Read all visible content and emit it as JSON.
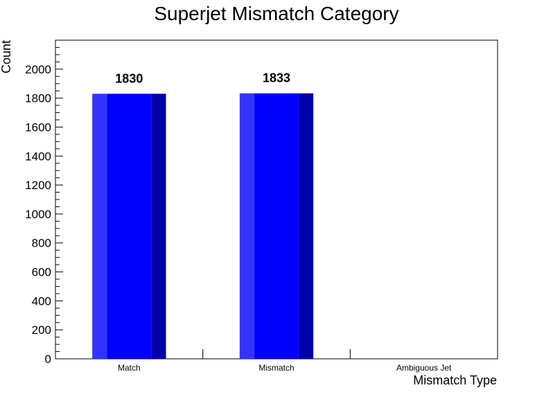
{
  "chart_data": {
    "type": "bar",
    "title": "Superjet Mismatch Category",
    "xlabel": "Mismatch Type",
    "ylabel": "Count",
    "categories": [
      "Match",
      "Mismatch",
      "Ambiguous Jet"
    ],
    "values": [
      1830,
      1833,
      0
    ],
    "data_labels": [
      "1830",
      "1833",
      ""
    ],
    "ylim": [
      0,
      2200
    ],
    "yticks": [
      0,
      200,
      400,
      600,
      800,
      1000,
      1200,
      1400,
      1600,
      1800,
      2000
    ],
    "grid": false,
    "legend": "none",
    "colors": {
      "bar": "#0000ff",
      "bar_light": "#3333ff",
      "bar_dark": "#0000aa"
    }
  }
}
